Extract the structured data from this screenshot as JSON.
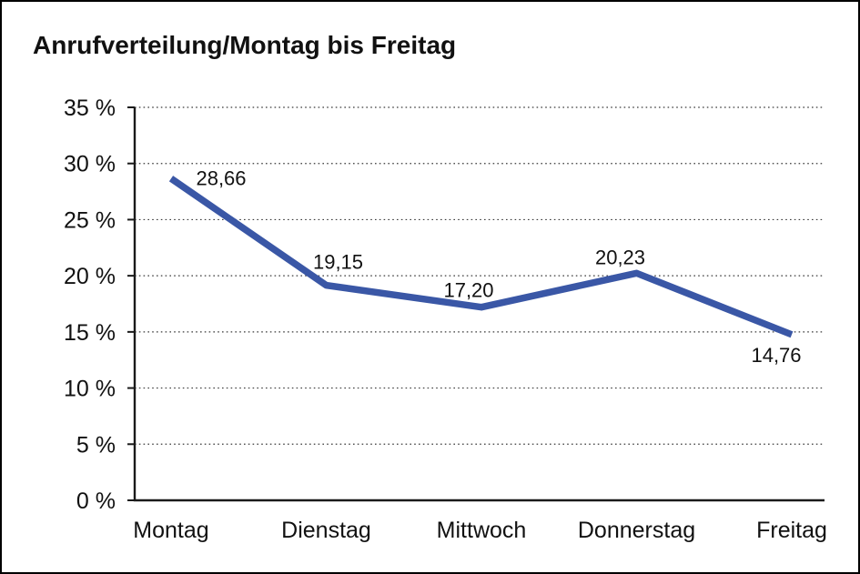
{
  "page": {
    "background_color": "#ffffff",
    "border_color": "#000000",
    "text_color": "#111111"
  },
  "chart_data": {
    "type": "line",
    "title": "Anrufverteilung/Montag bis Freitag",
    "categories": [
      "Montag",
      "Dienstag",
      "Mittwoch",
      "Donnerstag",
      "Freitag"
    ],
    "values": [
      28.66,
      19.15,
      17.2,
      20.23,
      14.76
    ],
    "data_labels": [
      "28,66",
      "19,15",
      "17,20",
      "20,23",
      "14,76"
    ],
    "ylim": [
      0,
      35
    ],
    "ytick_values": [
      0,
      5,
      10,
      15,
      20,
      25,
      30,
      35
    ],
    "ytick_labels": [
      "0 %",
      "5 %",
      "10 %",
      "15 %",
      "20 %",
      "25 %",
      "30 %",
      "35 %"
    ],
    "xlabel": "",
    "ylabel": "",
    "grid": "horizontal-dotted",
    "legend": "none",
    "line_color": "#3A57A6",
    "axis_color": "#1a1a1a",
    "gridline_color": "#3a3a3a"
  }
}
